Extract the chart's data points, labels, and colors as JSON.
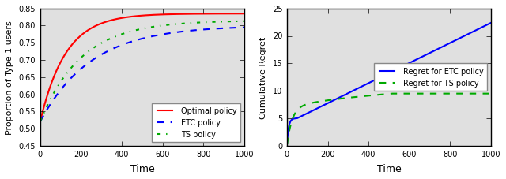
{
  "left_panel": {
    "ylabel": "Proportion of Type 1 users",
    "xlabel": "Time",
    "ylim": [
      0.45,
      0.85
    ],
    "xlim": [
      0,
      1000
    ],
    "xticks": [
      0,
      200,
      400,
      600,
      800,
      1000
    ],
    "yticks": [
      0.45,
      0.5,
      0.55,
      0.6,
      0.65,
      0.7,
      0.75,
      0.8,
      0.85
    ],
    "legend_labels": [
      "Optimal policy",
      "ETC policy",
      "TS policy"
    ],
    "legend_styles": [
      {
        "color": "#ff0000",
        "linestyle": "-"
      },
      {
        "color": "#0000ff",
        "linestyle": "--"
      },
      {
        "color": "#00aa00",
        "linestyle": "-."
      }
    ],
    "opt_asymptote": 0.835,
    "opt_initial": 0.52,
    "opt_rate": 0.008,
    "etc_asymptote": 0.8,
    "etc_initial": 0.52,
    "etc_rate": 0.004,
    "ts_asymptote": 0.815,
    "ts_initial": 0.52,
    "ts_rate": 0.005
  },
  "right_panel": {
    "ylabel": "Cumulative Regret",
    "xlabel": "Time",
    "ylim": [
      0,
      25
    ],
    "xlim": [
      0,
      1000
    ],
    "xticks": [
      0,
      200,
      400,
      600,
      800,
      1000
    ],
    "yticks": [
      0,
      5,
      10,
      15,
      20,
      25
    ],
    "legend_labels": [
      "Regret for ETC policy",
      "Regret for TS policy"
    ],
    "legend_styles": [
      {
        "color": "#0000ff",
        "linestyle": "-"
      },
      {
        "color": "#00aa00",
        "linestyle": "--"
      }
    ],
    "etc_jump_end": 50,
    "etc_jump_val": 5.0,
    "etc_linear_rate": 0.0183,
    "ts_asymptote": 7.0,
    "ts_rate": 0.04,
    "ts_log_scale": 2.5,
    "ts_final": 9.5
  },
  "figure_bg": "#f0f0f0",
  "axes_bg": "#e0e0e0",
  "linewidth": 1.5,
  "legend_fontsize": 7,
  "tick_labelsize": 7,
  "axis_labelsize": 8,
  "xlabel_fontsize": 9
}
